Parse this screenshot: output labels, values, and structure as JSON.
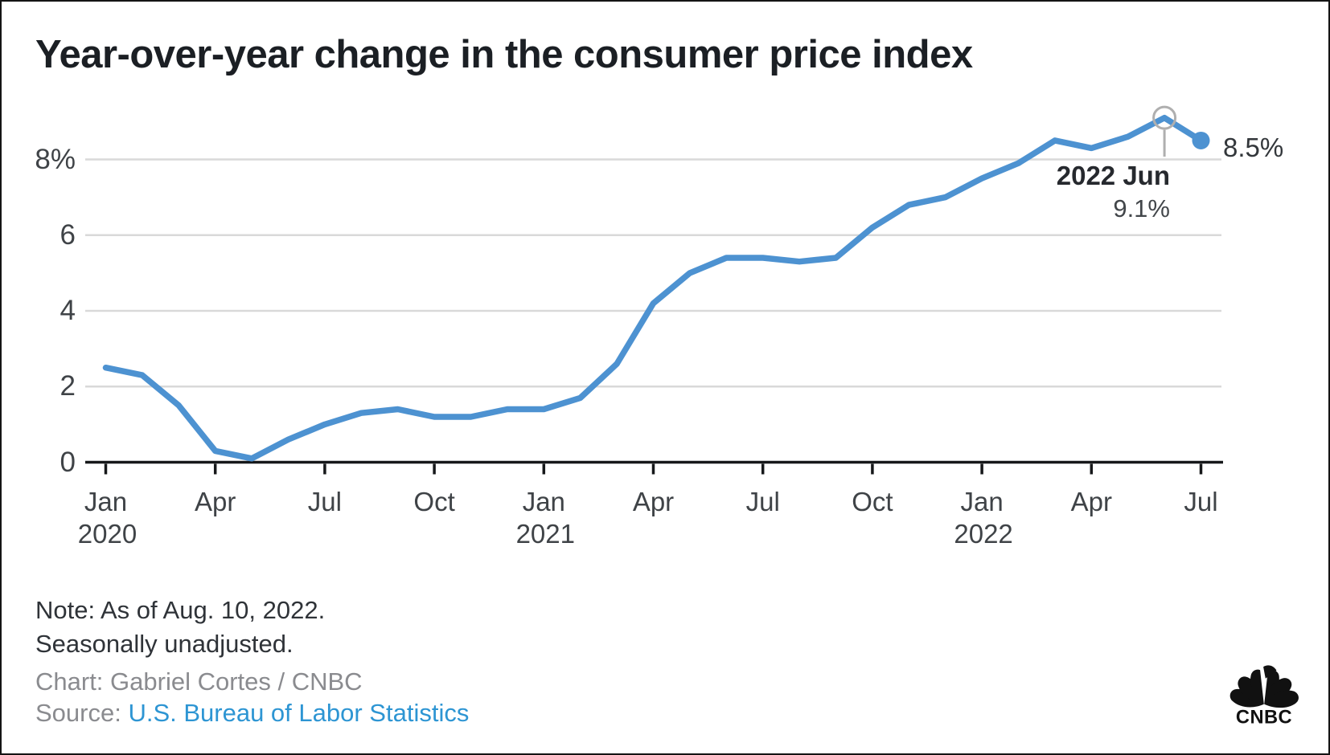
{
  "title": "Year-over-year change in the consumer price index",
  "chart_data": {
    "type": "line",
    "series_name": "Year-over-year change in the consumer price index (%)",
    "x": [
      "Jan 2020",
      "Feb 2020",
      "Mar 2020",
      "Apr 2020",
      "May 2020",
      "Jun 2020",
      "Jul 2020",
      "Aug 2020",
      "Sep 2020",
      "Oct 2020",
      "Nov 2020",
      "Dec 2020",
      "Jan 2021",
      "Feb 2021",
      "Mar 2021",
      "Apr 2021",
      "May 2021",
      "Jun 2021",
      "Jul 2021",
      "Aug 2021",
      "Sep 2021",
      "Oct 2021",
      "Nov 2021",
      "Dec 2021",
      "Jan 2022",
      "Feb 2022",
      "Mar 2022",
      "Apr 2022",
      "May 2022",
      "Jun 2022",
      "Jul 2022"
    ],
    "values": [
      2.5,
      2.3,
      1.5,
      0.3,
      0.1,
      0.6,
      1.0,
      1.3,
      1.4,
      1.2,
      1.2,
      1.4,
      1.4,
      1.7,
      2.6,
      4.2,
      5.0,
      5.4,
      5.4,
      5.3,
      5.4,
      6.2,
      6.8,
      7.0,
      7.5,
      7.9,
      8.5,
      8.3,
      8.6,
      9.1,
      8.5
    ],
    "ylim": [
      0,
      9.6
    ],
    "grid": true,
    "y_ticks": [
      {
        "value": 8,
        "label": "8%"
      },
      {
        "value": 6,
        "label": "6"
      },
      {
        "value": 4,
        "label": "4"
      },
      {
        "value": 2,
        "label": "2"
      },
      {
        "value": 0,
        "label": "0"
      }
    ],
    "x_ticks": [
      {
        "index": 0,
        "label": "Jan",
        "year": "2020"
      },
      {
        "index": 3,
        "label": "Apr"
      },
      {
        "index": 6,
        "label": "Jul"
      },
      {
        "index": 9,
        "label": "Oct"
      },
      {
        "index": 12,
        "label": "Jan",
        "year": "2021"
      },
      {
        "index": 15,
        "label": "Apr"
      },
      {
        "index": 18,
        "label": "Jul"
      },
      {
        "index": 21,
        "label": "Oct"
      },
      {
        "index": 24,
        "label": "Jan",
        "year": "2022"
      },
      {
        "index": 27,
        "label": "Apr"
      },
      {
        "index": 30,
        "label": "Jul"
      }
    ],
    "annotations": {
      "peak": {
        "x_index": 29,
        "label_line1": "2022 Jun",
        "label_line2": "9.1%"
      },
      "last_point": {
        "x_index": 30,
        "label": "8.5%"
      }
    }
  },
  "footer": {
    "note_line1": "Note: As of Aug. 10, 2022.",
    "note_line2": "Seasonally unadjusted.",
    "credit": "Chart: Gabriel Cortes / CNBC",
    "source_label": "Source: ",
    "source_link": "U.S. Bureau of Labor Statistics"
  },
  "logo": {
    "icon": "cnbc-peacock-logo",
    "wordmark": "CNBC"
  },
  "colors": {
    "line": "#4D92D1",
    "grid": "#D9D9D9",
    "axis": "#16181a",
    "callout": "#AFAFAF",
    "link": "#2d95d3",
    "title_text": "#1b1f24",
    "tick_text": "#3f4347"
  }
}
